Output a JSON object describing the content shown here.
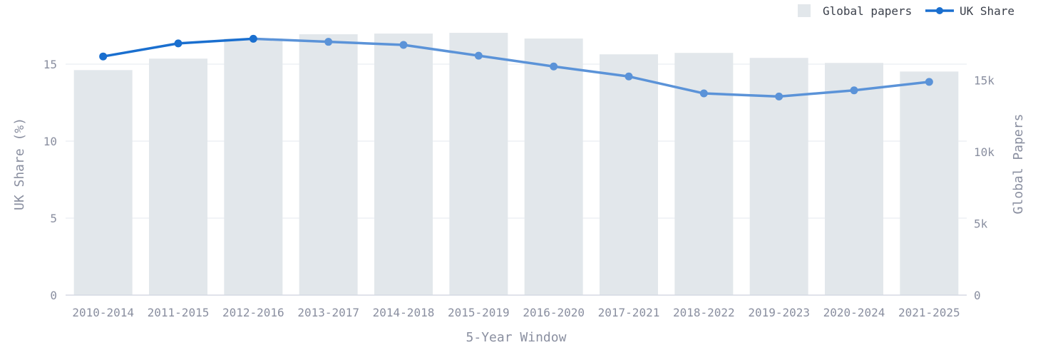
{
  "chart_data": {
    "type": "bar+line",
    "categories": [
      "2010-2014",
      "2011-2015",
      "2012-2016",
      "2013-2017",
      "2014-2018",
      "2015-2019",
      "2016-2020",
      "2017-2021",
      "2018-2022",
      "2019-2023",
      "2020-2024",
      "2021-2025"
    ],
    "series": [
      {
        "name": "Global papers",
        "type": "bar",
        "axis": "right",
        "values": [
          15700,
          16500,
          17900,
          18200,
          18250,
          18300,
          17900,
          16800,
          16900,
          16550,
          16200,
          15600
        ]
      },
      {
        "name": "UK Share",
        "type": "line",
        "axis": "left",
        "values": [
          15.5,
          16.35,
          16.65,
          16.45,
          16.25,
          15.55,
          14.85,
          14.2,
          13.1,
          12.9,
          13.3,
          13.85
        ]
      }
    ],
    "xlabel": "5-Year Window",
    "ylabel": "UK Share (%)",
    "y2label": "Global Papers",
    "ylim": [
      0,
      17.5
    ],
    "y2lim": [
      0,
      18800
    ],
    "yticks": [
      {
        "v": 0,
        "label": "0"
      },
      {
        "v": 5,
        "label": "5"
      },
      {
        "v": 10,
        "label": "10"
      },
      {
        "v": 15,
        "label": "15"
      }
    ],
    "y2ticks": [
      {
        "v": 0,
        "label": "0"
      },
      {
        "v": 5000,
        "label": "5k"
      },
      {
        "v": 10000,
        "label": "10k"
      },
      {
        "v": 15000,
        "label": "15k"
      }
    ],
    "legend_position": "top-right",
    "grid": true,
    "colors": {
      "bar": "#e2e7eb",
      "line": "#1a6fcf",
      "line_faded": "#5b93d8",
      "grid": "#e6e9ef",
      "axis_text": "#8a8fa0",
      "legend_text": "#3a3f4a"
    }
  }
}
